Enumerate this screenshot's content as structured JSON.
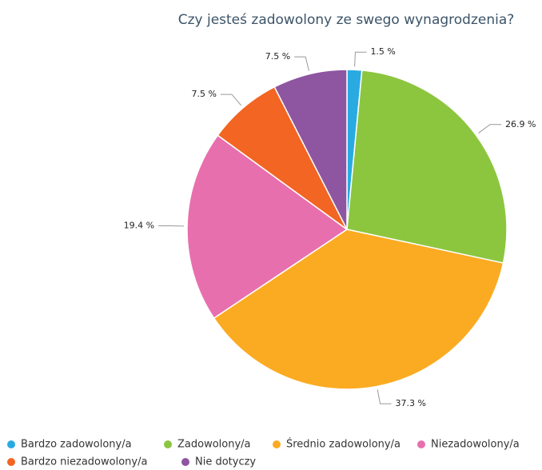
{
  "chart_data": {
    "type": "pie",
    "title": "Czy jesteś zadowolony ze swego wynagrodzenia?",
    "categories": [
      "Bardzo zadowolony/a",
      "Zadowolony/a",
      "Średnio zadowolony/a",
      "Niezadowolony/a",
      "Bardzo niezadowolony/a",
      "Nie dotyczy"
    ],
    "values": [
      1.5,
      26.9,
      37.3,
      19.4,
      7.5,
      7.5
    ],
    "value_labels": [
      "1.5 %",
      "26.9 %",
      "37.3 %",
      "19.4 %",
      "7.5 %",
      "7.5 %"
    ],
    "colors": [
      "#29abe2",
      "#8cc63f",
      "#fbab22",
      "#e86fae",
      "#f26522",
      "#8e55a1"
    ]
  }
}
